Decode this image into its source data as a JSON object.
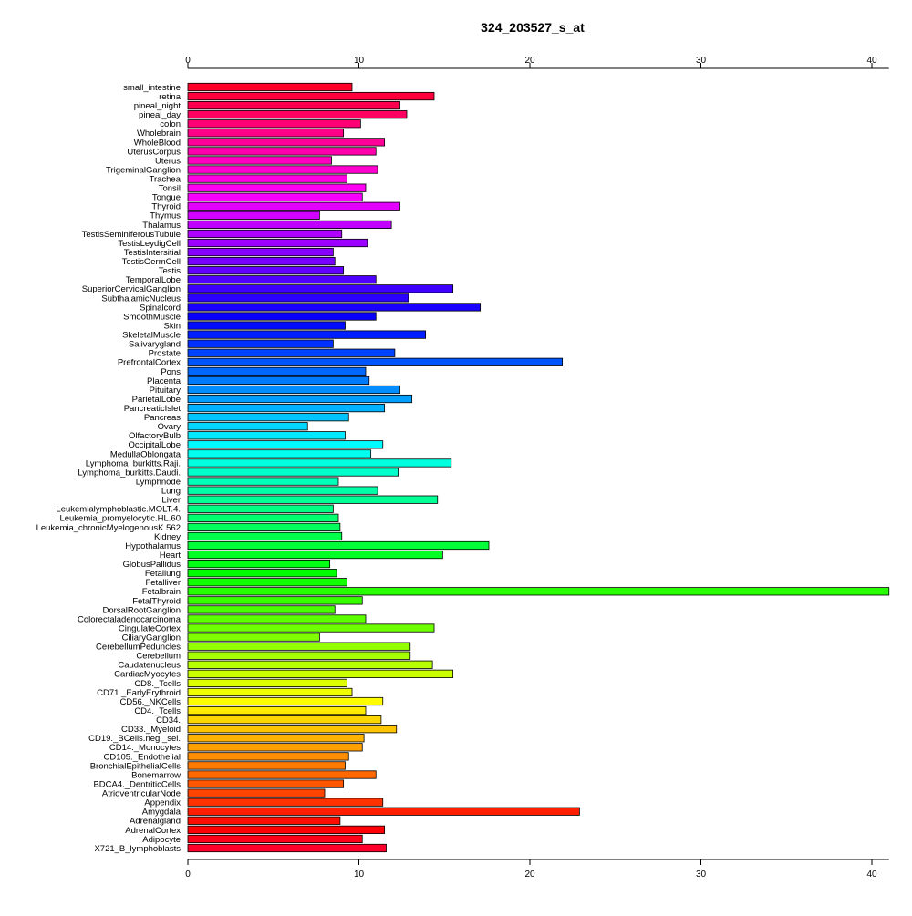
{
  "chart_data": {
    "type": "bar",
    "orientation": "horizontal",
    "title": "324_203527_s_at",
    "xlabel": "",
    "ylabel": "",
    "xlim": [
      0,
      41
    ],
    "x_ticks": [
      0,
      10,
      20,
      30,
      40
    ],
    "axes_positions": [
      "top",
      "bottom"
    ],
    "grid": false,
    "legend": false,
    "colormap": "rainbow (red to violet to red, top to bottom)",
    "categories": [
      "small_intestine",
      "retina",
      "pineal_night",
      "pineal_day",
      "colon",
      "Wholebrain",
      "WholeBlood",
      "UterusCorpus",
      "Uterus",
      "TrigeminalGanglion",
      "Trachea",
      "Tonsil",
      "Tongue",
      "Thyroid",
      "Thymus",
      "Thalamus",
      "TestisSeminiferousTubule",
      "TestisLeydigCell",
      "TestisIntersitial",
      "TestisGermCell",
      "Testis",
      "TemporalLobe",
      "SuperiorCervicalGanglion",
      "SubthalamicNucleus",
      "Spinalcord",
      "SmoothMuscle",
      "Skin",
      "SkeletalMuscle",
      "Salivarygland",
      "Prostate",
      "PrefrontalCortex",
      "Pons",
      "Placenta",
      "Pituitary",
      "ParietalLobe",
      "PancreaticIslet",
      "Pancreas",
      "Ovary",
      "OlfactoryBulb",
      "OccipitalLobe",
      "MedullaOblongata",
      "Lymphoma_burkitts.Raji.",
      "Lymphoma_burkitts.Daudi.",
      "Lymphnode",
      "Lung",
      "Liver",
      "Leukemialymphoblastic.MOLT.4.",
      "Leukemia_promyelocytic.HL.60",
      "Leukemia_chronicMyelogenousK.562",
      "Kidney",
      "Hypothalamus",
      "Heart",
      "GlobusPallidus",
      "Fetallung",
      "Fetalliver",
      "Fetalbrain",
      "FetalThyroid",
      "DorsalRootGanglion",
      "Colorectaladenocarcinoma",
      "CingulateCortex",
      "CiliaryGanglion",
      "CerebellumPeduncles",
      "Cerebellum",
      "Caudatenucleus",
      "CardiacMyocytes",
      "CD8._Tcells",
      "CD71._EarlyErythroid",
      "CD56._NKCells",
      "CD4._Tcells",
      "CD34.",
      "CD33._Myeloid",
      "CD19._BCells.neg._sel.",
      "CD14._Monocytes",
      "CD105._Endothelial",
      "BronchialEpithelialCells",
      "Bonemarrow",
      "BDCA4._DentriticCells",
      "AtrioventricularNode",
      "Appendix",
      "Amygdala",
      "Adrenalgland",
      "AdrenalCortex",
      "Adipocyte",
      "X721_B_lymphoblasts"
    ],
    "values": [
      9.6,
      14.4,
      12.4,
      12.8,
      10.1,
      9.1,
      11.5,
      11.0,
      8.4,
      11.1,
      9.3,
      10.4,
      10.2,
      12.4,
      7.7,
      11.9,
      9.0,
      10.5,
      8.5,
      8.6,
      9.1,
      11.0,
      15.5,
      12.9,
      17.1,
      11.0,
      9.2,
      13.9,
      8.5,
      12.1,
      21.9,
      10.4,
      10.6,
      12.4,
      13.1,
      11.5,
      9.4,
      7.0,
      9.2,
      11.4,
      10.7,
      15.4,
      12.3,
      8.8,
      11.1,
      14.6,
      8.5,
      8.8,
      8.9,
      9.0,
      17.6,
      14.9,
      8.3,
      8.7,
      9.3,
      41.0,
      10.2,
      8.6,
      10.4,
      14.4,
      7.7,
      13.0,
      13.0,
      14.3,
      15.5,
      9.3,
      9.6,
      11.4,
      10.4,
      11.3,
      12.2,
      10.3,
      10.2,
      9.4,
      9.2,
      11.0,
      9.1,
      8.0,
      11.4,
      22.9,
      8.9,
      11.5,
      10.2,
      11.6
    ]
  }
}
